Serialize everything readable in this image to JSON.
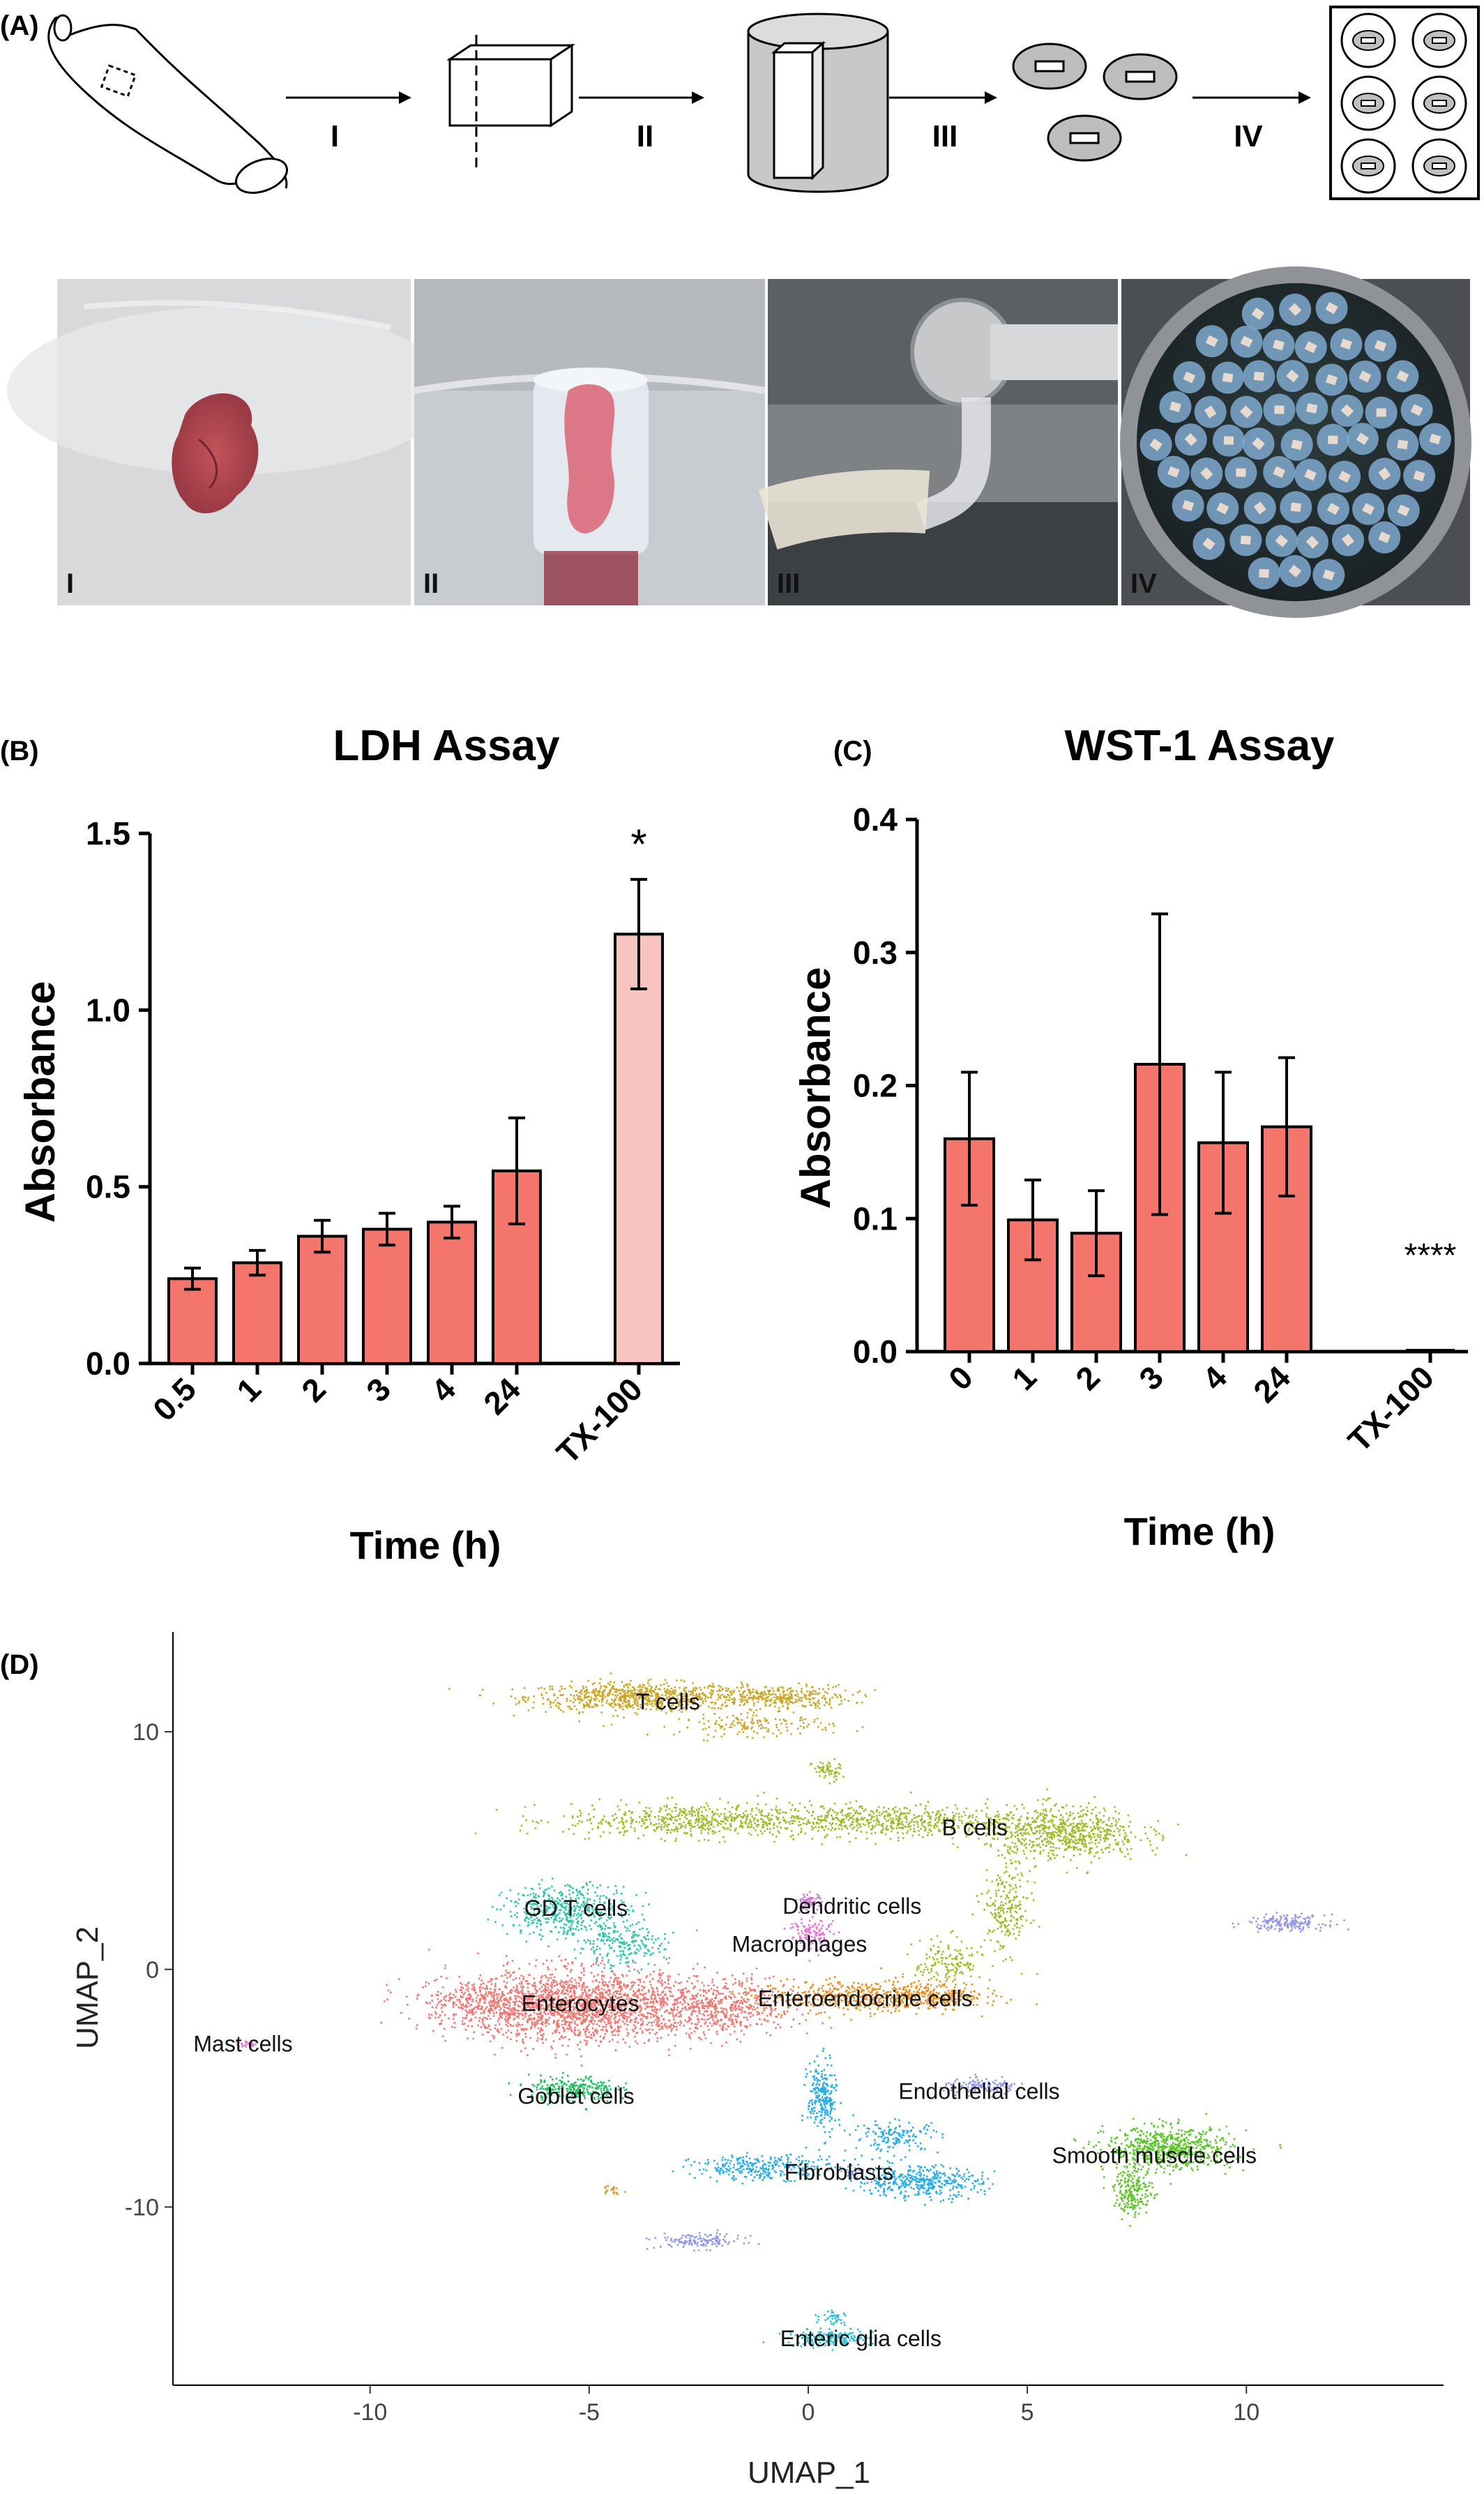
{
  "panels": {
    "a_label": "(A)",
    "b_label": "(B)",
    "c_label": "(C)",
    "d_label": "(D)"
  },
  "schematic": {
    "steps": [
      "I",
      "II",
      "III",
      "IV"
    ]
  },
  "photos": {
    "labels": [
      "I",
      "II",
      "III",
      "IV"
    ]
  },
  "colors": {
    "bar": "#F4756B",
    "bar_light": "#F9C3C0",
    "photo_bg": [
      "#dcdcdc",
      "#c9ccd0",
      "#8a8c8e",
      "#2f3a3c"
    ]
  },
  "chart_data": [
    {
      "type": "bar",
      "title": "LDH Assay",
      "xlabel": "Time (h)",
      "ylabel": "Absorbance",
      "ylim": [
        0,
        1.5
      ],
      "yticks": [
        "0.0",
        "0.5",
        "1.0",
        "1.5"
      ],
      "categories": [
        "0.5",
        "1",
        "2",
        "3",
        "4",
        "24",
        "TX-100"
      ],
      "values": [
        0.24,
        0.285,
        0.36,
        0.38,
        0.4,
        0.545,
        1.215
      ],
      "errors": [
        0.03,
        0.035,
        0.045,
        0.045,
        0.045,
        0.15,
        0.155
      ],
      "annotation": "*",
      "annotation_category": "TX-100"
    },
    {
      "type": "bar",
      "title": "WST-1 Assay",
      "xlabel": "Time (h)",
      "ylabel": "Absorbance",
      "ylim": [
        0,
        0.4
      ],
      "yticks": [
        "0.0",
        "0.1",
        "0.2",
        "0.3",
        "0.4"
      ],
      "categories": [
        "0",
        "1",
        "2",
        "3",
        "4",
        "24",
        "TX-100"
      ],
      "values": [
        0.16,
        0.099,
        0.089,
        0.216,
        0.157,
        0.169,
        0.001
      ],
      "errors": [
        0.05,
        0.03,
        0.032,
        0.113,
        0.053,
        0.052,
        0.0
      ],
      "annotation": "****",
      "annotation_category": "TX-100"
    },
    {
      "type": "scatter",
      "xlabel": "UMAP_1",
      "ylabel": "UMAP_2",
      "xlim": [
        -14.5,
        14.5
      ],
      "ylim": [
        -17.5,
        14.2
      ],
      "xticks": [
        "-10",
        "-5",
        "0",
        "5",
        "10"
      ],
      "yticks": [
        "-10",
        "0",
        "10"
      ],
      "clusters": [
        {
          "name": "T cells",
          "color": "#C8A21E",
          "label_at": [
            -3.2,
            11.3
          ]
        },
        {
          "name": "B cells",
          "color": "#99B81E",
          "label_at": [
            3.8,
            6.0
          ]
        },
        {
          "name": "GD T cells",
          "color": "#27C2A6",
          "label_at": [
            -5.3,
            2.6
          ]
        },
        {
          "name": "Dendritic cells",
          "color": "#C873D6",
          "label_at": [
            1.0,
            2.7
          ]
        },
        {
          "name": "Macrophages",
          "color": "#E86CD4",
          "label_at": [
            -0.2,
            1.1
          ]
        },
        {
          "name": "Enterocytes",
          "color": "#F0706A",
          "label_at": [
            -5.2,
            -1.4
          ]
        },
        {
          "name": "Enteroendocrine cells",
          "color": "#E68A14",
          "label_at": [
            1.3,
            -1.2
          ]
        },
        {
          "name": "Mast cells",
          "color": "#E56ED0",
          "label_at": [
            -12.9,
            -3.1
          ]
        },
        {
          "name": "Goblet cells",
          "color": "#1BBA5A",
          "label_at": [
            -5.3,
            -5.3
          ]
        },
        {
          "name": "Endothelial cells",
          "color": "#8E91E8",
          "label_at": [
            3.9,
            -5.1
          ]
        },
        {
          "name": "Fibroblasts",
          "color": "#1EA8E6",
          "label_at": [
            0.7,
            -8.5
          ]
        },
        {
          "name": "Smooth muscle cells",
          "color": "#54C21E",
          "label_at": [
            7.9,
            -7.8
          ]
        },
        {
          "name": "Enteric glia cells",
          "color": "#22BCD6",
          "label_at": [
            1.2,
            -15.5
          ]
        }
      ]
    }
  ]
}
